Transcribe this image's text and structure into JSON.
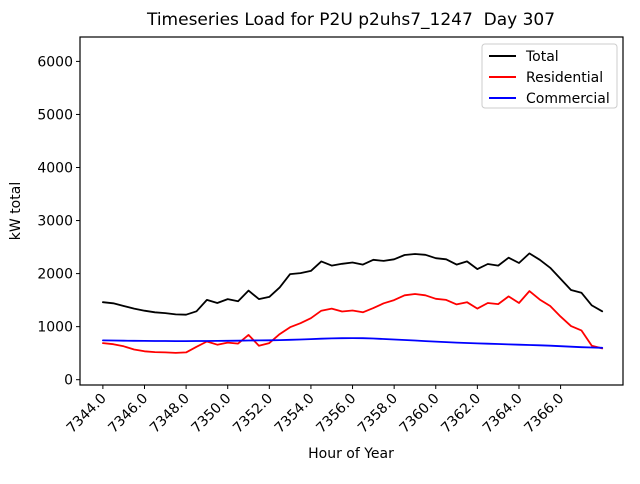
{
  "figure": {
    "background": "#ffffff"
  },
  "chart_data": {
    "type": "line",
    "title": "Timeseries Load for P2U p2uhs7_1247  Day 307",
    "xlabel": "Hour of Year",
    "ylabel": "kW total",
    "xlim": [
      7342.9,
      7369.0
    ],
    "ylim": [
      -100,
      6460
    ],
    "grid": false,
    "legend_position": "upper right",
    "xticks": [
      7344,
      7346,
      7348,
      7350,
      7352,
      7354,
      7356,
      7358,
      7360,
      7362,
      7364,
      7366
    ],
    "xtick_labels": [
      "7344.0",
      "7346.0",
      "7348.0",
      "7350.0",
      "7352.0",
      "7354.0",
      "7356.0",
      "7358.0",
      "7360.0",
      "7362.0",
      "7364.0",
      "7366.0"
    ],
    "yticks": [
      0,
      1000,
      2000,
      3000,
      4000,
      5000,
      6000
    ],
    "ytick_labels": [
      "0",
      "1000",
      "2000",
      "3000",
      "4000",
      "5000",
      "6000"
    ],
    "x": [
      7344.0,
      7344.5,
      7345.0,
      7345.5,
      7346.0,
      7346.5,
      7347.0,
      7347.5,
      7348.0,
      7348.5,
      7349.0,
      7349.5,
      7350.0,
      7350.5,
      7351.0,
      7351.5,
      7352.0,
      7352.5,
      7353.0,
      7353.5,
      7354.0,
      7354.5,
      7355.0,
      7355.5,
      7356.0,
      7356.5,
      7357.0,
      7357.5,
      7358.0,
      7358.5,
      7359.0,
      7359.5,
      7360.0,
      7360.5,
      7361.0,
      7361.5,
      7362.0,
      7362.5,
      7363.0,
      7363.5,
      7364.0,
      7364.5,
      7365.0,
      7365.5,
      7366.0,
      7366.5,
      7367.0,
      7367.5,
      7368.0
    ],
    "series": [
      {
        "name": "Total",
        "color": "#000000",
        "values": [
          1460,
          1440,
          1390,
          1340,
          1300,
          1270,
          1255,
          1230,
          1225,
          1290,
          1505,
          1445,
          1520,
          1480,
          1680,
          1520,
          1560,
          1740,
          1990,
          2010,
          2050,
          2230,
          2150,
          2185,
          2210,
          2170,
          2260,
          2240,
          2270,
          2350,
          2370,
          2355,
          2290,
          2270,
          2170,
          2230,
          2085,
          2180,
          2150,
          2300,
          2200,
          2380,
          2260,
          2110,
          1900,
          1690,
          1640,
          1400,
          1290
        ]
      },
      {
        "name": "Residential",
        "color": "#ff0000",
        "values": [
          690,
          670,
          630,
          570,
          535,
          520,
          515,
          505,
          515,
          620,
          720,
          660,
          700,
          680,
          845,
          640,
          690,
          860,
          990,
          1065,
          1160,
          1300,
          1340,
          1285,
          1305,
          1270,
          1350,
          1440,
          1500,
          1590,
          1615,
          1590,
          1525,
          1505,
          1420,
          1460,
          1340,
          1445,
          1425,
          1570,
          1445,
          1670,
          1510,
          1390,
          1190,
          1010,
          930,
          640,
          590
        ]
      },
      {
        "name": "Commercial",
        "color": "#0000ff",
        "values": [
          740,
          738,
          736,
          734,
          732,
          730,
          729,
          728,
          728,
          729,
          730,
          732,
          734,
          736,
          738,
          740,
          742,
          746,
          752,
          758,
          765,
          772,
          778,
          782,
          785,
          782,
          776,
          768,
          758,
          748,
          738,
          728,
          718,
          708,
          700,
          692,
          685,
          678,
          672,
          666,
          660,
          654,
          648,
          640,
          632,
          622,
          612,
          606,
          602
        ]
      }
    ]
  }
}
